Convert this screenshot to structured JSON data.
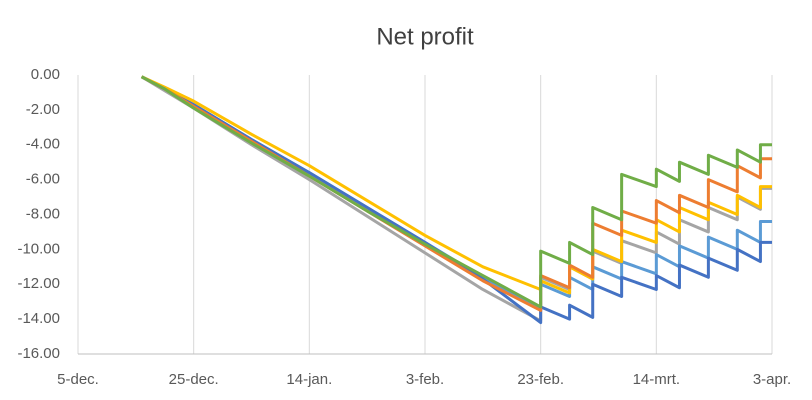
{
  "chart_data": {
    "type": "line",
    "title": "Net profit",
    "x": [
      11,
      15,
      20,
      30,
      40,
      50,
      60,
      70,
      80,
      80,
      85,
      85,
      89,
      89,
      94,
      94,
      100,
      100,
      104,
      104,
      109,
      109,
      114,
      114,
      118,
      118,
      120
    ],
    "xlim": [
      0,
      120
    ],
    "xticks": [
      {
        "value": 0,
        "label": "5-dec."
      },
      {
        "value": 20,
        "label": "25-dec."
      },
      {
        "value": 40,
        "label": "14-jan."
      },
      {
        "value": 60,
        "label": "3-feb."
      },
      {
        "value": 80,
        "label": "23-feb."
      },
      {
        "value": 100,
        "label": "14-mrt."
      },
      {
        "value": 120,
        "label": "3-apr."
      }
    ],
    "ylim": [
      -16,
      0
    ],
    "yticks": [
      {
        "value": 0,
        "label": "0.00"
      },
      {
        "value": -2,
        "label": "-2.00"
      },
      {
        "value": -4,
        "label": "-4.00"
      },
      {
        "value": -6,
        "label": "-6.00"
      },
      {
        "value": -8,
        "label": "-8.00"
      },
      {
        "value": -10,
        "label": "-10.00"
      },
      {
        "value": -12,
        "label": "-12.00"
      },
      {
        "value": -14,
        "label": "-14.00"
      },
      {
        "value": -16,
        "label": "-16.00"
      }
    ],
    "grid": true,
    "series": [
      {
        "color": "#a5a5a5",
        "values": [
          -0.1,
          -0.9,
          -1.9,
          -4.0,
          -6.0,
          -8.1,
          -10.2,
          -12.3,
          -14.1,
          -11.6,
          -12.3,
          -11.0,
          -11.7,
          -10.1,
          -10.8,
          -9.5,
          -10.2,
          -9.0,
          -9.7,
          -8.3,
          -9.0,
          -7.6,
          -8.3,
          -7.0,
          -7.7,
          -6.5,
          -6.5
        ]
      },
      {
        "color": "#5b9bd5",
        "values": [
          -0.1,
          -0.8,
          -1.7,
          -3.7,
          -5.6,
          -7.6,
          -9.6,
          -11.6,
          -13.4,
          -12.0,
          -12.7,
          -11.6,
          -12.3,
          -11.0,
          -11.7,
          -10.7,
          -11.4,
          -10.3,
          -11.0,
          -9.8,
          -10.5,
          -9.3,
          -10.0,
          -8.9,
          -9.6,
          -8.4,
          -8.4
        ]
      },
      {
        "color": "#4472c4",
        "values": [
          -0.1,
          -0.8,
          -1.7,
          -3.7,
          -5.6,
          -7.6,
          -9.6,
          -11.7,
          -14.2,
          -13.3,
          -14.0,
          -13.2,
          -13.9,
          -12.0,
          -12.7,
          -11.6,
          -12.3,
          -11.5,
          -12.2,
          -10.9,
          -11.6,
          -10.5,
          -11.2,
          -10.0,
          -10.7,
          -9.6,
          -9.6
        ]
      },
      {
        "color": "#ffc000",
        "values": [
          -0.1,
          -0.7,
          -1.5,
          -3.4,
          -5.2,
          -7.2,
          -9.2,
          -11.0,
          -12.3,
          -11.8,
          -12.5,
          -11.0,
          -11.7,
          -10.0,
          -10.7,
          -8.9,
          -9.6,
          -8.3,
          -9.0,
          -7.6,
          -8.3,
          -7.3,
          -8.0,
          -6.9,
          -7.6,
          -6.4,
          -6.4
        ]
      },
      {
        "color": "#ed7d31",
        "values": [
          -0.1,
          -0.8,
          -1.8,
          -3.8,
          -5.8,
          -7.8,
          -9.8,
          -11.8,
          -13.5,
          -11.5,
          -12.2,
          -10.9,
          -11.6,
          -8.5,
          -9.2,
          -7.8,
          -8.5,
          -7.2,
          -7.9,
          -6.9,
          -7.6,
          -6.0,
          -6.7,
          -5.2,
          -5.9,
          -4.8,
          -4.8
        ]
      },
      {
        "color": "#70ad47",
        "values": [
          -0.1,
          -0.8,
          -1.9,
          -3.9,
          -5.8,
          -7.8,
          -9.7,
          -11.5,
          -13.3,
          -10.1,
          -10.8,
          -9.6,
          -10.3,
          -7.6,
          -8.3,
          -5.7,
          -6.4,
          -5.4,
          -6.1,
          -5.0,
          -5.7,
          -4.6,
          -5.3,
          -4.3,
          -5.0,
          -4.0,
          -4.0
        ]
      }
    ]
  }
}
